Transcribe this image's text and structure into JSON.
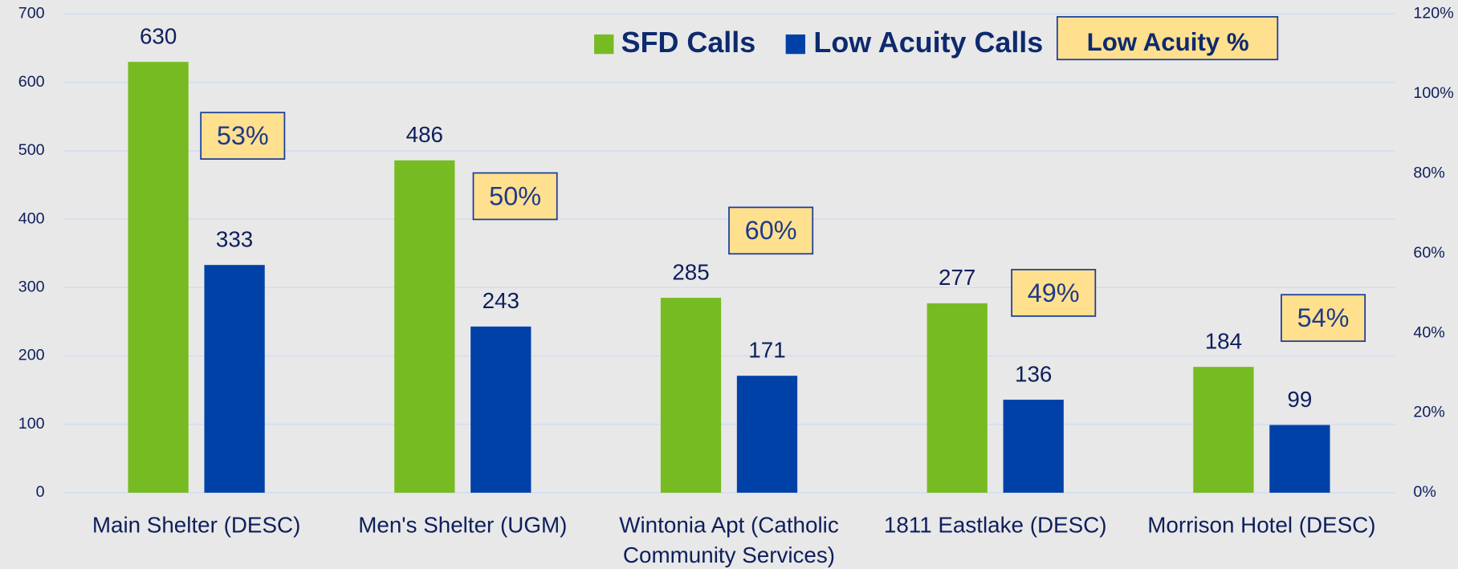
{
  "chart_data": {
    "type": "bar",
    "categories": [
      "Main Shelter (DESC)",
      "Men's Shelter (UGM)",
      "Wintonia Apt (Catholic Community Services)",
      "1811 Eastlake (DESC)",
      "Morrison Hotel (DESC)"
    ],
    "series": [
      {
        "name": "SFD Calls",
        "color": "#77bb22",
        "values": [
          630,
          486,
          285,
          277,
          184
        ]
      },
      {
        "name": "Low Acuity Calls",
        "color": "#0041a8",
        "values": [
          333,
          243,
          171,
          136,
          99
        ]
      },
      {
        "name": "Low Acuity %",
        "color": "#ffe08f",
        "axis": "y2",
        "values": [
          53,
          50,
          60,
          49,
          54
        ],
        "value_labels": [
          "53%",
          "50%",
          "60%",
          "49%",
          "54%"
        ]
      }
    ],
    "ylim": [
      0,
      700
    ],
    "yticks": [
      0,
      100,
      200,
      300,
      400,
      500,
      600,
      700
    ],
    "y2lim": [
      0,
      120
    ],
    "y2ticks": [
      {
        "value": 0,
        "label": "0%"
      },
      {
        "value": 20,
        "label": "20%"
      },
      {
        "value": 40,
        "label": "40%"
      },
      {
        "value": 60,
        "label": "60%"
      },
      {
        "value": 80,
        "label": "80%"
      },
      {
        "value": 100,
        "label": "100%"
      },
      {
        "value": 120,
        "label": "120%"
      }
    ],
    "grid": true,
    "legend": "top"
  }
}
